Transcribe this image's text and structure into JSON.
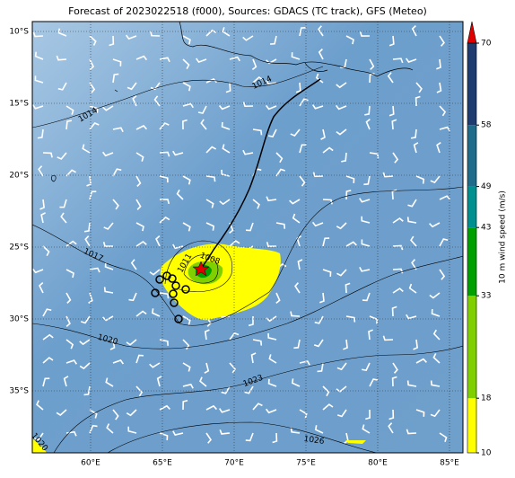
{
  "title": "Forecast of 2023022518 (f000), Sources: GDACS (TC track), GFS (Meteo)",
  "lat_labels": [
    "10°S",
    "15°S",
    "20°S",
    "25°S",
    "30°S",
    "35°S"
  ],
  "lon_labels": [
    "60°E",
    "65°E",
    "70°E",
    "75°E",
    "80°E",
    "85°E"
  ],
  "isobar_labels": [
    "1014",
    "1014",
    "1017",
    "1020",
    "1020",
    "1023",
    "1026",
    "1011",
    "1008"
  ],
  "colorbar": {
    "label": "10 m wind speed (m/s)",
    "ticks": [
      10,
      18,
      33,
      43,
      49,
      58,
      70
    ],
    "colors": [
      "#ffff00",
      "#80d000",
      "#00a000",
      "#009090",
      "#206a8a",
      "#1e3c70",
      "#1a2050"
    ],
    "extend_color": "#e00000"
  }
}
